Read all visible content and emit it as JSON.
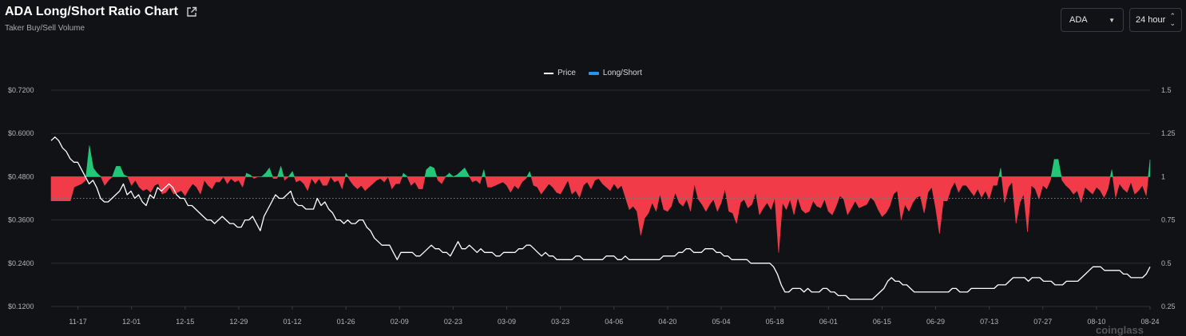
{
  "header": {
    "title": "ADA Long/Short Ratio Chart",
    "subtitle": "Taker Buy/Sell Volume"
  },
  "controls": {
    "asset": "ADA",
    "period": "24 hour"
  },
  "watermark": "coinglass",
  "chart_data": {
    "type": "line",
    "title": "ADA Long/Short Ratio Chart",
    "subtitle": "Taker Buy/Sell Volume",
    "legend": [
      {
        "name": "Price",
        "color": "#ffffff",
        "marker": "line"
      },
      {
        "name": "Long/Short",
        "color": "#2196f3",
        "marker": "box"
      }
    ],
    "legend_position": "top-center",
    "grid": true,
    "colors": {
      "above": "#22c777",
      "below": "#f23b49",
      "price": "#ffffff"
    },
    "x_ticks": [
      "11-17",
      "12-01",
      "12-15",
      "12-29",
      "01-12",
      "01-26",
      "02-09",
      "02-23",
      "03-09",
      "03-23",
      "04-06",
      "04-20",
      "05-04",
      "05-18",
      "06-01",
      "06-15",
      "06-29",
      "07-13",
      "07-27",
      "08-10",
      "08-24"
    ],
    "y_left": {
      "ticks": [
        "$0.1200",
        "$0.2400",
        "$0.3600",
        "$0.4800",
        "$0.6000",
        "$0.7200"
      ],
      "ylim": [
        0.12,
        0.72
      ]
    },
    "y_right": {
      "ticks": [
        "0.25",
        "0.5",
        "0.75",
        "1",
        "1.25",
        "1.5"
      ],
      "ylim": [
        0.25,
        1.5
      ],
      "baseline": 1
    },
    "start_date": "11-10",
    "step_days": 1,
    "series": [
      {
        "name": "Price",
        "axis": "left",
        "values": [
          0.58,
          0.59,
          0.58,
          0.56,
          0.55,
          0.53,
          0.52,
          0.52,
          0.5,
          0.48,
          0.46,
          0.47,
          0.45,
          0.42,
          0.41,
          0.41,
          0.42,
          0.43,
          0.44,
          0.46,
          0.43,
          0.44,
          0.42,
          0.43,
          0.41,
          0.4,
          0.43,
          0.42,
          0.45,
          0.44,
          0.45,
          0.46,
          0.45,
          0.43,
          0.42,
          0.42,
          0.4,
          0.4,
          0.39,
          0.38,
          0.37,
          0.36,
          0.36,
          0.35,
          0.36,
          0.37,
          0.36,
          0.35,
          0.35,
          0.34,
          0.34,
          0.36,
          0.36,
          0.37,
          0.35,
          0.33,
          0.37,
          0.39,
          0.41,
          0.43,
          0.42,
          0.42,
          0.43,
          0.44,
          0.41,
          0.4,
          0.4,
          0.39,
          0.39,
          0.39,
          0.42,
          0.4,
          0.41,
          0.39,
          0.38,
          0.36,
          0.36,
          0.35,
          0.36,
          0.35,
          0.35,
          0.36,
          0.36,
          0.34,
          0.33,
          0.31,
          0.3,
          0.29,
          0.29,
          0.29,
          0.27,
          0.25,
          0.27,
          0.27,
          0.27,
          0.27,
          0.26,
          0.26,
          0.27,
          0.28,
          0.29,
          0.28,
          0.28,
          0.27,
          0.27,
          0.26,
          0.28,
          0.3,
          0.28,
          0.28,
          0.29,
          0.28,
          0.27,
          0.28,
          0.27,
          0.27,
          0.27,
          0.26,
          0.26,
          0.27,
          0.27,
          0.27,
          0.27,
          0.28,
          0.28,
          0.29,
          0.29,
          0.28,
          0.27,
          0.26,
          0.27,
          0.26,
          0.26,
          0.25,
          0.25,
          0.25,
          0.25,
          0.25,
          0.26,
          0.26,
          0.25,
          0.25,
          0.25,
          0.25,
          0.25,
          0.25,
          0.26,
          0.26,
          0.26,
          0.25,
          0.25,
          0.26,
          0.25,
          0.25,
          0.25,
          0.25,
          0.25,
          0.25,
          0.25,
          0.25,
          0.25,
          0.26,
          0.26,
          0.26,
          0.26,
          0.27,
          0.27,
          0.28,
          0.28,
          0.27,
          0.27,
          0.27,
          0.28,
          0.28,
          0.28,
          0.27,
          0.27,
          0.26,
          0.26,
          0.25,
          0.25,
          0.25,
          0.25,
          0.25,
          0.24,
          0.24,
          0.24,
          0.24,
          0.24,
          0.24,
          0.23,
          0.21,
          0.18,
          0.16,
          0.16,
          0.17,
          0.17,
          0.17,
          0.16,
          0.17,
          0.16,
          0.16,
          0.16,
          0.17,
          0.17,
          0.16,
          0.16,
          0.15,
          0.15,
          0.15,
          0.14,
          0.14,
          0.14,
          0.14,
          0.14,
          0.14,
          0.14,
          0.15,
          0.16,
          0.17,
          0.19,
          0.2,
          0.19,
          0.19,
          0.18,
          0.18,
          0.17,
          0.16,
          0.16,
          0.16,
          0.16,
          0.16,
          0.16,
          0.16,
          0.16,
          0.16,
          0.16,
          0.17,
          0.17,
          0.16,
          0.16,
          0.16,
          0.17,
          0.17,
          0.17,
          0.17,
          0.17,
          0.17,
          0.17,
          0.18,
          0.18,
          0.18,
          0.19,
          0.2,
          0.2,
          0.2,
          0.2,
          0.19,
          0.2,
          0.2,
          0.2,
          0.19,
          0.19,
          0.19,
          0.18,
          0.18,
          0.18,
          0.19,
          0.19,
          0.19,
          0.19,
          0.2,
          0.21,
          0.22,
          0.23,
          0.23,
          0.23,
          0.22,
          0.22,
          0.22,
          0.22,
          0.22,
          0.21,
          0.21,
          0.2,
          0.2,
          0.2,
          0.2,
          0.21,
          0.23
        ]
      },
      {
        "name": "Long/Short",
        "axis": "right",
        "values": [
          0.86,
          0.86,
          0.86,
          0.86,
          0.86,
          0.86,
          0.94,
          0.95,
          0.96,
          0.98,
          1.18,
          1.05,
          1.02,
          1.0,
          0.95,
          0.98,
          1.0,
          1.06,
          1.06,
          1.01,
          1.0,
          0.95,
          0.98,
          0.94,
          0.92,
          0.93,
          0.91,
          0.95,
          0.96,
          0.9,
          0.91,
          0.94,
          0.9,
          0.91,
          0.92,
          0.89,
          0.93,
          0.96,
          0.94,
          0.9,
          0.98,
          0.95,
          0.93,
          0.97,
          0.97,
          1.0,
          0.96,
          0.99,
          0.97,
          0.98,
          0.94,
          1.02,
          1.01,
          0.99,
          1.0,
          1.0,
          1.02,
          1.05,
          0.99,
          0.99,
          1.06,
          0.98,
          1.0,
          1.03,
          0.97,
          0.98,
          0.96,
          0.92,
          0.99,
          0.96,
          0.99,
          0.95,
          0.95,
          1.0,
          0.97,
          0.98,
          0.93,
          1.02,
          0.98,
          0.95,
          0.93,
          0.95,
          0.92,
          0.94,
          0.96,
          0.98,
          0.99,
          0.97,
          1.0,
          0.93,
          0.96,
          0.96,
          1.02,
          1.0,
          0.95,
          0.97,
          0.93,
          0.93,
          1.04,
          1.06,
          1.05,
          0.98,
          0.96,
          1.0,
          1.02,
          1.0,
          1.01,
          1.03,
          1.05,
          1.01,
          0.97,
          0.98,
          0.96,
          1.04,
          0.94,
          0.94,
          0.95,
          0.96,
          0.97,
          0.95,
          0.91,
          0.95,
          0.93,
          0.97,
          0.99,
          1.03,
          0.95,
          0.94,
          0.9,
          0.93,
          0.96,
          0.94,
          0.91,
          0.9,
          0.94,
          0.98,
          0.9,
          0.92,
          0.88,
          0.95,
          0.97,
          0.93,
          0.98,
          0.99,
          0.96,
          0.94,
          0.92,
          0.96,
          0.93,
          0.95,
          0.88,
          0.81,
          0.83,
          0.8,
          0.66,
          0.76,
          0.79,
          0.85,
          0.8,
          0.9,
          0.81,
          0.8,
          0.83,
          0.91,
          0.85,
          0.83,
          0.87,
          0.8,
          0.96,
          0.87,
          0.84,
          0.8,
          0.84,
          0.87,
          0.8,
          0.85,
          0.93,
          0.8,
          0.79,
          0.73,
          0.85,
          0.87,
          0.82,
          0.84,
          0.91,
          0.78,
          0.82,
          0.85,
          0.81,
          0.88,
          0.56,
          0.85,
          0.81,
          0.87,
          0.78,
          0.88,
          0.81,
          0.79,
          0.8,
          0.86,
          0.83,
          0.82,
          0.87,
          0.8,
          0.78,
          0.83,
          0.89,
          0.87,
          0.78,
          0.82,
          0.86,
          0.82,
          0.83,
          0.84,
          0.88,
          0.86,
          0.81,
          0.77,
          0.79,
          0.83,
          0.9,
          0.92,
          0.75,
          0.84,
          0.8,
          0.85,
          0.88,
          0.89,
          0.79,
          0.91,
          0.94,
          0.82,
          0.67,
          0.86,
          0.86,
          0.93,
          0.97,
          0.91,
          0.95,
          0.95,
          0.92,
          0.89,
          0.93,
          0.88,
          0.92,
          0.87,
          0.95,
          0.95,
          1.05,
          0.85,
          0.94,
          0.97,
          0.73,
          0.85,
          0.9,
          0.68,
          0.95,
          0.93,
          0.87,
          0.95,
          0.93,
          0.98,
          1.1,
          1.1,
          0.98,
          0.95,
          0.93,
          0.9,
          0.92,
          0.85,
          0.94,
          0.92,
          0.9,
          0.94,
          0.92,
          0.88,
          0.93,
          1.04,
          0.88,
          0.96,
          0.93,
          0.91,
          0.97,
          0.9,
          0.92,
          0.95,
          0.89,
          1.1
        ]
      }
    ]
  }
}
